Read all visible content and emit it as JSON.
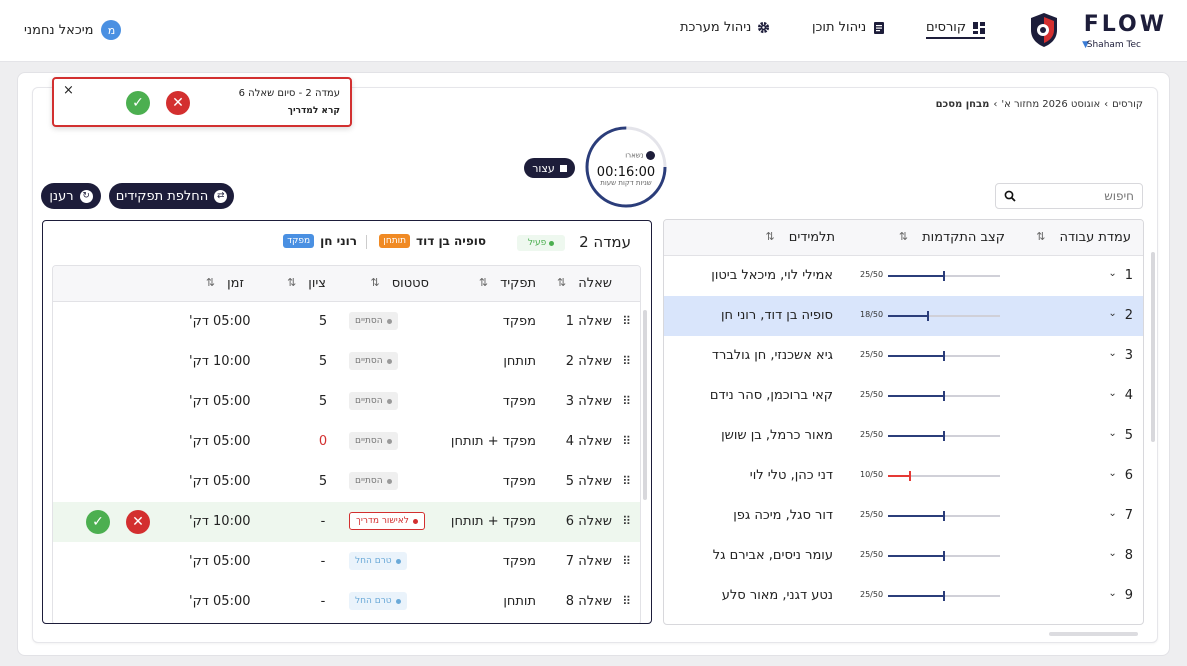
{
  "header": {
    "logo_text": "FLOW",
    "logo_sub": "Shaham Tec",
    "nav": [
      {
        "label": "קורסים"
      },
      {
        "label": "ניהול תוכן"
      },
      {
        "label": "ניהול מערכת"
      }
    ],
    "user_name": "מיכאל נחמני",
    "user_initial": "מ"
  },
  "breadcrumb": {
    "items": [
      "קורסים",
      "אוגוסט 2026 מחזור א'"
    ],
    "current": "מבחן מסכם",
    "separator": "›"
  },
  "alert": {
    "title": "עמדה 2 - סיום שאלה 6",
    "message": "קרא למדריך",
    "close": "×"
  },
  "timer": {
    "label_top": "נשארו",
    "time": "00:16:00",
    "units": "שניות  דקות  שעות",
    "stop_label": "עצור",
    "progress": 0.75
  },
  "actions": {
    "swap_roles": "החלפת תפקידים",
    "refresh": "רענן"
  },
  "search": {
    "placeholder": "חיפוש"
  },
  "stations_table": {
    "headers": {
      "station": "עמדת עבודה",
      "progress": "קצב התקדמות",
      "students": "תלמידים"
    },
    "rows": [
      {
        "num": "1",
        "progress": "25/50",
        "students": "אמילי לוי, מיכאל ביטון",
        "ratio": 0.5,
        "color": "#2b3d7a"
      },
      {
        "num": "2",
        "progress": "18/50",
        "students": "סופיה בן דוד, רוני חן",
        "ratio": 0.36,
        "color": "#2b3d7a",
        "selected": true
      },
      {
        "num": "3",
        "progress": "25/50",
        "students": "גיא אשכנזי, חן גולברד",
        "ratio": 0.5,
        "color": "#2b3d7a"
      },
      {
        "num": "4",
        "progress": "25/50",
        "students": "קאי ברוכמן, סהר נידם",
        "ratio": 0.5,
        "color": "#2b3d7a"
      },
      {
        "num": "5",
        "progress": "25/50",
        "students": "מאור כרמל, בן שושן",
        "ratio": 0.5,
        "color": "#2b3d7a"
      },
      {
        "num": "6",
        "progress": "10/50",
        "students": "דני כהן, טלי לוי",
        "ratio": 0.2,
        "color": "#e53935"
      },
      {
        "num": "7",
        "progress": "25/50",
        "students": "דור סגל, מיכה גפן",
        "ratio": 0.5,
        "color": "#2b3d7a"
      },
      {
        "num": "8",
        "progress": "25/50",
        "students": "עומר ניסים, אבירם גל",
        "ratio": 0.5,
        "color": "#2b3d7a"
      },
      {
        "num": "9",
        "progress": "25/50",
        "students": "נטע דגני, מאור סלע",
        "ratio": 0.5,
        "color": "#2b3d7a"
      }
    ]
  },
  "station_detail": {
    "title": "עמדה 2",
    "status": "פעיל",
    "members": [
      {
        "name": "סופיה בן דוד",
        "role": "תותחן",
        "color": "#f08a24"
      },
      {
        "name": "רוני חן",
        "role": "מפקד",
        "color": "#4a90e2"
      }
    ],
    "headers": {
      "question": "שאלה",
      "role": "תפקיד",
      "status": "סטטוס",
      "grade": "ציון",
      "time": "זמן"
    },
    "rows": [
      {
        "q": "שאלה 1",
        "role": "מפקד",
        "status": "הסתיים",
        "status_type": "done",
        "grade": "5",
        "time": "05:00 דק'"
      },
      {
        "q": "שאלה 2",
        "role": "תותחן",
        "status": "הסתיים",
        "status_type": "done",
        "grade": "5",
        "time": "10:00 דק'"
      },
      {
        "q": "שאלה 3",
        "role": "מפקד",
        "status": "הסתיים",
        "status_type": "done",
        "grade": "5",
        "time": "05:00 דק'"
      },
      {
        "q": "שאלה 4",
        "role": "מפקד + תותחן",
        "status": "הסתיים",
        "status_type": "done",
        "grade": "0",
        "time": "05:00 דק'"
      },
      {
        "q": "שאלה 5",
        "role": "מפקד",
        "status": "הסתיים",
        "status_type": "done",
        "grade": "5",
        "time": "05:00 דק'"
      },
      {
        "q": "שאלה 6",
        "role": "מפקד + תותחן",
        "status": "לאישור מדריך",
        "status_type": "pending",
        "grade": "-",
        "time": "10:00 דק'"
      },
      {
        "q": "שאלה 7",
        "role": "מפקד",
        "status": "טרם החל",
        "status_type": "notstart",
        "grade": "-",
        "time": "05:00 דק'"
      },
      {
        "q": "שאלה 8",
        "role": "תותחן",
        "status": "טרם החל",
        "status_type": "notstart",
        "grade": "-",
        "time": "05:00 דק'"
      }
    ]
  }
}
